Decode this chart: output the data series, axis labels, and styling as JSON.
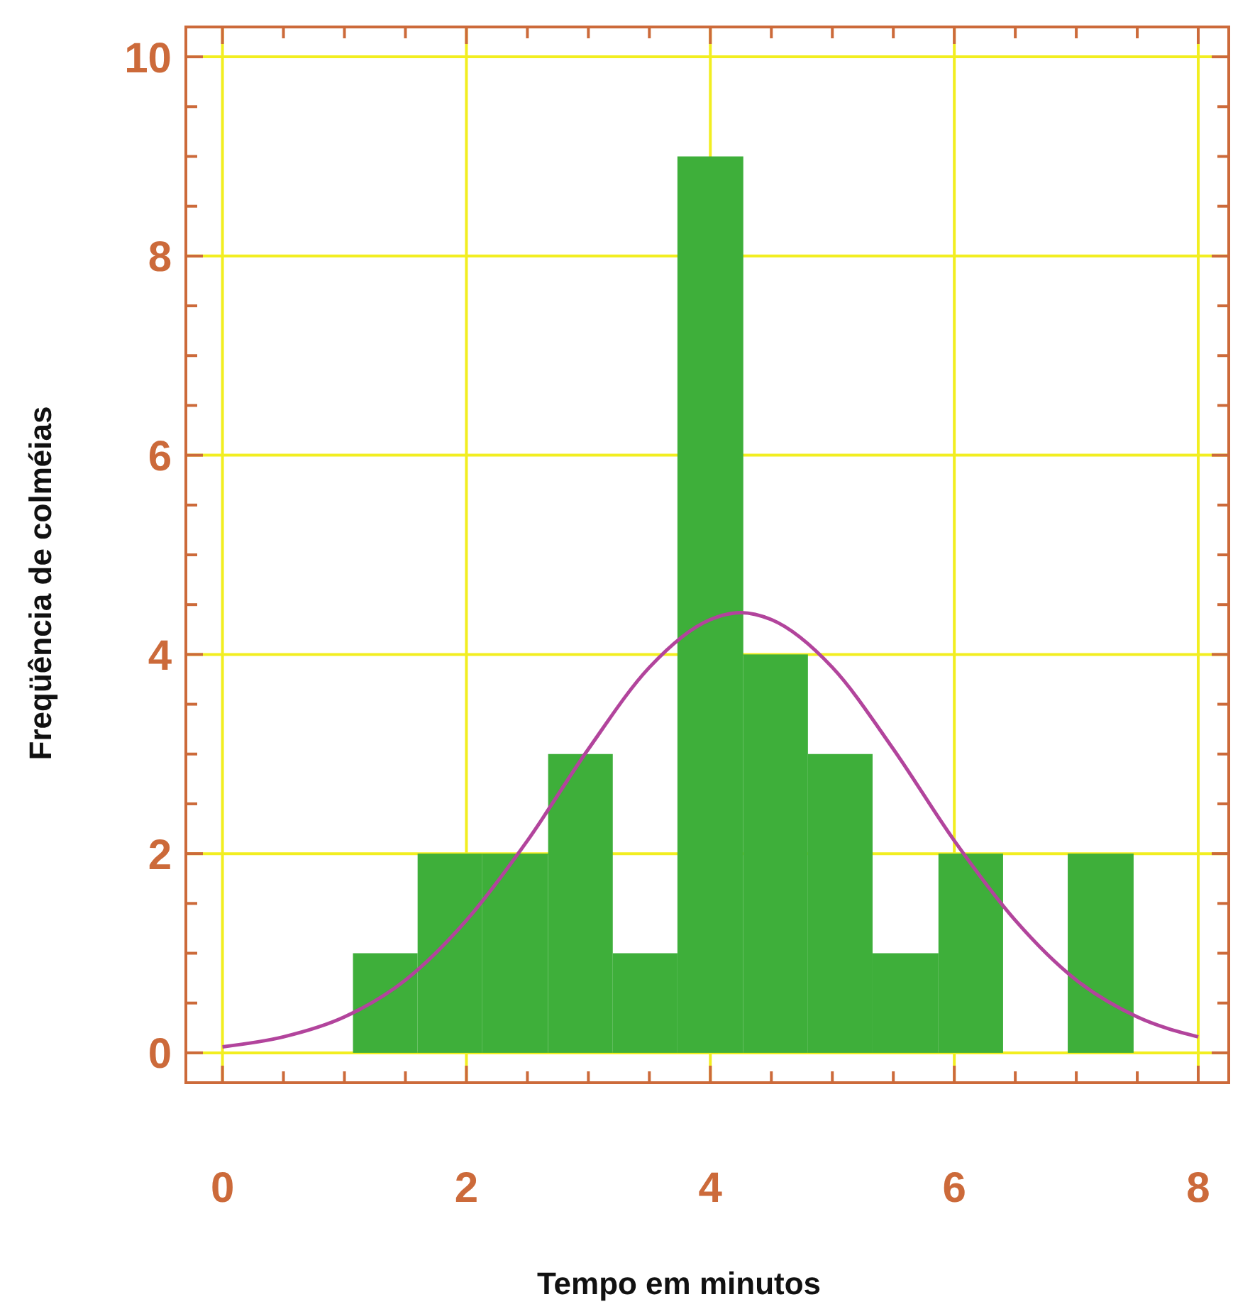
{
  "chart_data": {
    "type": "histogram",
    "xlabel": "Tempo em minutos",
    "ylabel": "Freqüência de colméias",
    "series": [
      {
        "color": "#3eaf3a",
        "bins": [
          1.07,
          1.6,
          2.13,
          2.67,
          3.2,
          3.73,
          4.27,
          4.8,
          5.33,
          5.87,
          6.4,
          6.93,
          7.47
        ],
        "values": [
          1,
          2,
          2,
          3,
          1,
          9,
          4,
          3,
          1,
          2,
          0,
          2
        ]
      },
      {
        "type": "line",
        "color": "#b2449c",
        "x": [
          0,
          0.5,
          1,
          1.5,
          2,
          2.5,
          3,
          3.5,
          4,
          4.25,
          4.5,
          5,
          5.5,
          6,
          6.5,
          7,
          7.5,
          8
        ],
        "values": [
          0.06,
          0.16,
          0.36,
          0.73,
          1.33,
          2.13,
          3.05,
          3.87,
          4.35,
          4.42,
          4.35,
          3.87,
          3.05,
          2.13,
          1.33,
          0.73,
          0.36,
          0.16
        ]
      }
    ],
    "xlim": [
      -0.3,
      8.25
    ],
    "ylim": [
      -0.3,
      10.3
    ],
    "xticks": [
      0,
      {
        "value": 0.5,
        "label": null
      },
      {
        "value": 1,
        "label": null
      },
      {
        "value": 1.5,
        "label": null
      },
      2,
      {
        "value": 2.5,
        "label": null
      },
      {
        "value": 3,
        "label": null
      },
      {
        "value": 3.5,
        "label": null
      },
      4,
      {
        "value": 4.5,
        "label": null
      },
      {
        "value": 5,
        "label": null
      },
      {
        "value": 5.5,
        "label": null
      },
      6,
      {
        "value": 6.5,
        "label": null
      },
      {
        "value": 7,
        "label": null
      },
      {
        "value": 7.5,
        "label": null
      },
      8
    ],
    "yticks": [
      0,
      {
        "value": 0.5,
        "label": null
      },
      {
        "value": 1,
        "label": null
      },
      {
        "value": 1.5,
        "label": null
      },
      2,
      {
        "value": 2.5,
        "label": null
      },
      {
        "value": 3,
        "label": null
      },
      {
        "value": 3.5,
        "label": null
      },
      4,
      {
        "value": 4.5,
        "label": null
      },
      {
        "value": 5,
        "label": null
      },
      {
        "value": 5.5,
        "label": null
      },
      6,
      {
        "value": 6.5,
        "label": null
      },
      {
        "value": 7,
        "label": null
      },
      {
        "value": 7.5,
        "label": null
      },
      8,
      {
        "value": 8.5,
        "label": null
      },
      {
        "value": 9,
        "label": null
      },
      {
        "value": 9.5,
        "label": null
      },
      10
    ],
    "grid": true,
    "line_style": "solid"
  }
}
